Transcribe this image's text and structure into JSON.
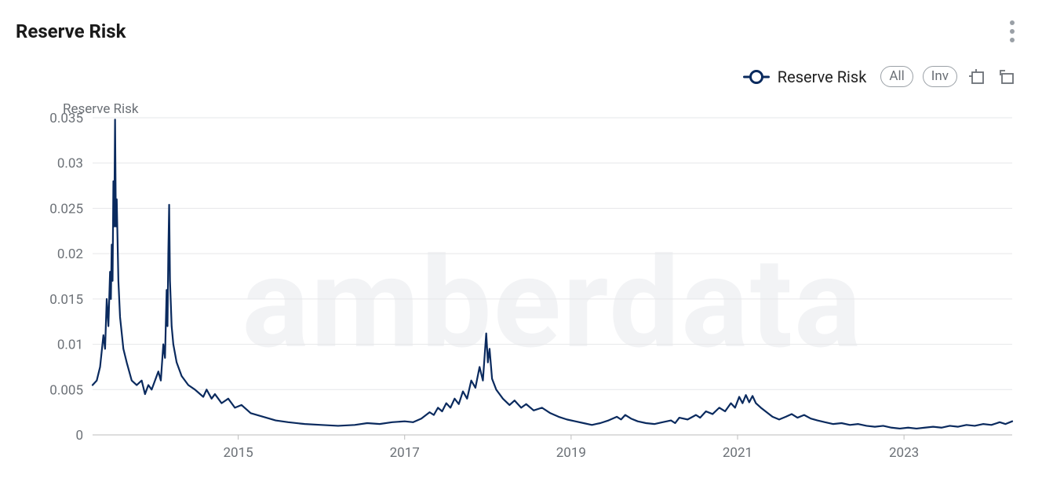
{
  "title": "Reserve Risk",
  "toolbar": {
    "legend_label": "Reserve Risk",
    "all_label": "All",
    "inv_label": "Inv"
  },
  "chart": {
    "type": "line",
    "axis_title": "Reserve Risk",
    "watermark_text": "amberdata",
    "series_color": "#0a2a5e",
    "line_width": 2.2,
    "background_color": "#ffffff",
    "grid_color": "#e6e7e9",
    "axis_color": "#bdbdbd",
    "tick_font_color": "#6b7076",
    "tick_font_size": 17,
    "watermark_color": "#f2f3f5",
    "watermark_font_size": 160,
    "y": {
      "min": 0,
      "max": 0.035,
      "ticks": [
        0,
        0.005,
        0.01,
        0.015,
        0.02,
        0.025,
        0.03,
        0.035
      ],
      "tick_labels": [
        "0",
        "0.005",
        "0.01",
        "0.015",
        "0.02",
        "0.025",
        "0.03",
        "0.035"
      ]
    },
    "x": {
      "min": 2013.25,
      "max": 2024.3,
      "ticks": [
        2015,
        2017,
        2019,
        2021,
        2023
      ],
      "tick_labels": [
        "2015",
        "2017",
        "2019",
        "2021",
        "2023"
      ]
    },
    "series": [
      {
        "name": "Reserve Risk",
        "points": [
          [
            2013.25,
            0.0055
          ],
          [
            2013.3,
            0.006
          ],
          [
            2013.34,
            0.0075
          ],
          [
            2013.38,
            0.011
          ],
          [
            2013.4,
            0.0095
          ],
          [
            2013.42,
            0.015
          ],
          [
            2013.44,
            0.012
          ],
          [
            2013.46,
            0.018
          ],
          [
            2013.47,
            0.015
          ],
          [
            2013.48,
            0.021
          ],
          [
            2013.49,
            0.017
          ],
          [
            2013.5,
            0.028
          ],
          [
            2013.51,
            0.023
          ],
          [
            2013.52,
            0.0348
          ],
          [
            2013.53,
            0.023
          ],
          [
            2013.54,
            0.026
          ],
          [
            2013.56,
            0.017
          ],
          [
            2013.58,
            0.013
          ],
          [
            2013.62,
            0.0095
          ],
          [
            2013.66,
            0.008
          ],
          [
            2013.72,
            0.006
          ],
          [
            2013.78,
            0.0055
          ],
          [
            2013.84,
            0.006
          ],
          [
            2013.88,
            0.0045
          ],
          [
            2013.92,
            0.0055
          ],
          [
            2013.96,
            0.005
          ],
          [
            2014.0,
            0.006
          ],
          [
            2014.04,
            0.007
          ],
          [
            2014.07,
            0.006
          ],
          [
            2014.1,
            0.01
          ],
          [
            2014.12,
            0.0085
          ],
          [
            2014.14,
            0.016
          ],
          [
            2014.15,
            0.012
          ],
          [
            2014.16,
            0.02
          ],
          [
            2014.17,
            0.0254
          ],
          [
            2014.18,
            0.017
          ],
          [
            2014.2,
            0.012
          ],
          [
            2014.22,
            0.01
          ],
          [
            2014.26,
            0.008
          ],
          [
            2014.32,
            0.0065
          ],
          [
            2014.4,
            0.0055
          ],
          [
            2014.48,
            0.005
          ],
          [
            2014.58,
            0.0042
          ],
          [
            2014.62,
            0.005
          ],
          [
            2014.68,
            0.004
          ],
          [
            2014.72,
            0.0045
          ],
          [
            2014.8,
            0.0035
          ],
          [
            2014.88,
            0.004
          ],
          [
            2014.96,
            0.003
          ],
          [
            2015.04,
            0.0033
          ],
          [
            2015.15,
            0.0024
          ],
          [
            2015.3,
            0.002
          ],
          [
            2015.45,
            0.0016
          ],
          [
            2015.6,
            0.0014
          ],
          [
            2015.8,
            0.0012
          ],
          [
            2016.0,
            0.0011
          ],
          [
            2016.2,
            0.001
          ],
          [
            2016.4,
            0.0011
          ],
          [
            2016.55,
            0.0013
          ],
          [
            2016.7,
            0.0012
          ],
          [
            2016.85,
            0.0014
          ],
          [
            2017.0,
            0.0015
          ],
          [
            2017.1,
            0.0014
          ],
          [
            2017.2,
            0.0018
          ],
          [
            2017.3,
            0.0025
          ],
          [
            2017.35,
            0.0022
          ],
          [
            2017.4,
            0.003
          ],
          [
            2017.45,
            0.0026
          ],
          [
            2017.5,
            0.0035
          ],
          [
            2017.55,
            0.003
          ],
          [
            2017.6,
            0.004
          ],
          [
            2017.65,
            0.0034
          ],
          [
            2017.7,
            0.0048
          ],
          [
            2017.75,
            0.004
          ],
          [
            2017.8,
            0.006
          ],
          [
            2017.85,
            0.0052
          ],
          [
            2017.9,
            0.0075
          ],
          [
            2017.94,
            0.006
          ],
          [
            2017.98,
            0.0112
          ],
          [
            2018.0,
            0.008
          ],
          [
            2018.02,
            0.0095
          ],
          [
            2018.05,
            0.0062
          ],
          [
            2018.1,
            0.005
          ],
          [
            2018.18,
            0.004
          ],
          [
            2018.26,
            0.0033
          ],
          [
            2018.32,
            0.0038
          ],
          [
            2018.4,
            0.003
          ],
          [
            2018.46,
            0.0034
          ],
          [
            2018.55,
            0.0027
          ],
          [
            2018.65,
            0.003
          ],
          [
            2018.75,
            0.0024
          ],
          [
            2018.85,
            0.002
          ],
          [
            2018.95,
            0.0017
          ],
          [
            2019.05,
            0.0015
          ],
          [
            2019.15,
            0.0013
          ],
          [
            2019.25,
            0.0011
          ],
          [
            2019.35,
            0.0013
          ],
          [
            2019.45,
            0.0016
          ],
          [
            2019.55,
            0.002
          ],
          [
            2019.6,
            0.0017
          ],
          [
            2019.65,
            0.0022
          ],
          [
            2019.72,
            0.0018
          ],
          [
            2019.8,
            0.0015
          ],
          [
            2019.9,
            0.0013
          ],
          [
            2020.0,
            0.0012
          ],
          [
            2020.1,
            0.0014
          ],
          [
            2020.2,
            0.0016
          ],
          [
            2020.25,
            0.0013
          ],
          [
            2020.3,
            0.0019
          ],
          [
            2020.4,
            0.0017
          ],
          [
            2020.5,
            0.0022
          ],
          [
            2020.55,
            0.0019
          ],
          [
            2020.62,
            0.0026
          ],
          [
            2020.7,
            0.0023
          ],
          [
            2020.78,
            0.003
          ],
          [
            2020.85,
            0.0026
          ],
          [
            2020.92,
            0.0035
          ],
          [
            2020.97,
            0.003
          ],
          [
            2021.02,
            0.0042
          ],
          [
            2021.06,
            0.0035
          ],
          [
            2021.1,
            0.0044
          ],
          [
            2021.14,
            0.0036
          ],
          [
            2021.18,
            0.0043
          ],
          [
            2021.22,
            0.0035
          ],
          [
            2021.28,
            0.003
          ],
          [
            2021.35,
            0.0025
          ],
          [
            2021.42,
            0.002
          ],
          [
            2021.5,
            0.0017
          ],
          [
            2021.58,
            0.002
          ],
          [
            2021.65,
            0.0023
          ],
          [
            2021.72,
            0.0019
          ],
          [
            2021.8,
            0.0022
          ],
          [
            2021.88,
            0.0018
          ],
          [
            2021.96,
            0.0016
          ],
          [
            2022.05,
            0.0014
          ],
          [
            2022.15,
            0.0012
          ],
          [
            2022.25,
            0.0013
          ],
          [
            2022.35,
            0.0011
          ],
          [
            2022.45,
            0.0012
          ],
          [
            2022.55,
            0.001
          ],
          [
            2022.65,
            0.0009
          ],
          [
            2022.75,
            0.001
          ],
          [
            2022.85,
            0.0008
          ],
          [
            2022.95,
            0.0007
          ],
          [
            2023.05,
            0.0008
          ],
          [
            2023.15,
            0.0007
          ],
          [
            2023.25,
            0.0008
          ],
          [
            2023.35,
            0.0009
          ],
          [
            2023.45,
            0.0008
          ],
          [
            2023.55,
            0.001
          ],
          [
            2023.65,
            0.0009
          ],
          [
            2023.75,
            0.0011
          ],
          [
            2023.85,
            0.001
          ],
          [
            2023.95,
            0.0012
          ],
          [
            2024.05,
            0.0011
          ],
          [
            2024.15,
            0.0014
          ],
          [
            2024.22,
            0.0012
          ],
          [
            2024.3,
            0.0015
          ]
        ]
      }
    ]
  }
}
